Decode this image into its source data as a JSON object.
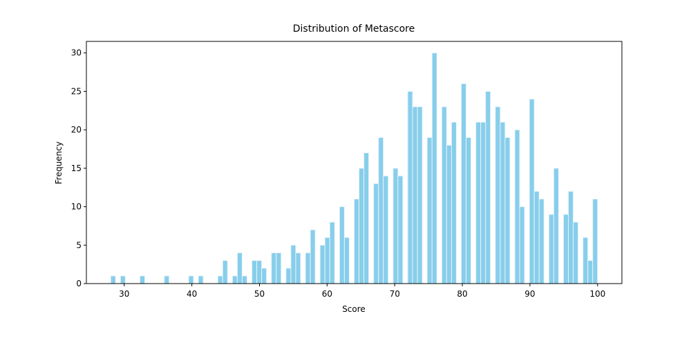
{
  "chart_data": {
    "type": "histogram",
    "title": "Distribution of Metascore",
    "x_label": "Score",
    "y_label": "Frequency",
    "bins": [
      28,
      28.72,
      29.44,
      30.16,
      30.88,
      31.6,
      32.32,
      33.04,
      33.76,
      34.48,
      35.2,
      35.92,
      36.64,
      37.36,
      38.08,
      38.8,
      39.52,
      40.24,
      40.96,
      41.68,
      42.4,
      43.12,
      43.84,
      44.56,
      45.28,
      46,
      46.72,
      47.44,
      48.16,
      48.88,
      49.6,
      50.32,
      51.04,
      51.76,
      52.48,
      53.2,
      53.92,
      54.64,
      55.36,
      56.08,
      56.8,
      57.52,
      58.24,
      58.96,
      59.68,
      60.4,
      61.12,
      61.84,
      62.56,
      63.28,
      64,
      64.72,
      65.44,
      66.16,
      66.88,
      67.6,
      68.32,
      69.04,
      69.76,
      70.48,
      71.2,
      71.92,
      72.64,
      73.36,
      74.08,
      74.8,
      75.52,
      76.24,
      76.96,
      77.68,
      78.4,
      79.12,
      79.84,
      80.56,
      81.28,
      82,
      82.72,
      83.44,
      84.16,
      84.88,
      85.6,
      86.32,
      87.04,
      87.76,
      88.48,
      89.2,
      89.92,
      90.64,
      91.36,
      92.08,
      92.8,
      93.52,
      94.24,
      94.96,
      95.68,
      96.4,
      97.12,
      97.84,
      98.56,
      99.28,
      100
    ],
    "values": [
      1,
      0,
      1,
      0,
      0,
      0,
      1,
      0,
      0,
      0,
      0,
      1,
      0,
      0,
      0,
      0,
      1,
      0,
      1,
      0,
      0,
      0,
      1,
      3,
      0,
      1,
      4,
      1,
      0,
      3,
      3,
      2,
      0,
      4,
      4,
      0,
      2,
      5,
      4,
      0,
      4,
      7,
      0,
      5,
      6,
      8,
      0,
      10,
      6,
      0,
      11,
      15,
      17,
      0,
      13,
      19,
      14,
      0,
      15,
      14,
      0,
      25,
      23,
      23,
      0,
      19,
      30,
      0,
      23,
      18,
      21,
      0,
      26,
      19,
      0,
      21,
      21,
      25,
      0,
      23,
      21,
      19,
      0,
      20,
      10,
      0,
      24,
      12,
      11,
      0,
      9,
      15,
      0,
      9,
      12,
      8,
      0,
      6,
      3,
      11
    ],
    "color": "#87ceeb",
    "edgecolor": "#e8f4fa",
    "xlim": [
      24.4,
      103.6
    ],
    "xticks": [
      30,
      40,
      50,
      60,
      70,
      80,
      90,
      100
    ],
    "ylim": [
      0,
      31.5
    ],
    "yticks": [
      0,
      5,
      10,
      15,
      20,
      25,
      30
    ],
    "grid": false
  }
}
